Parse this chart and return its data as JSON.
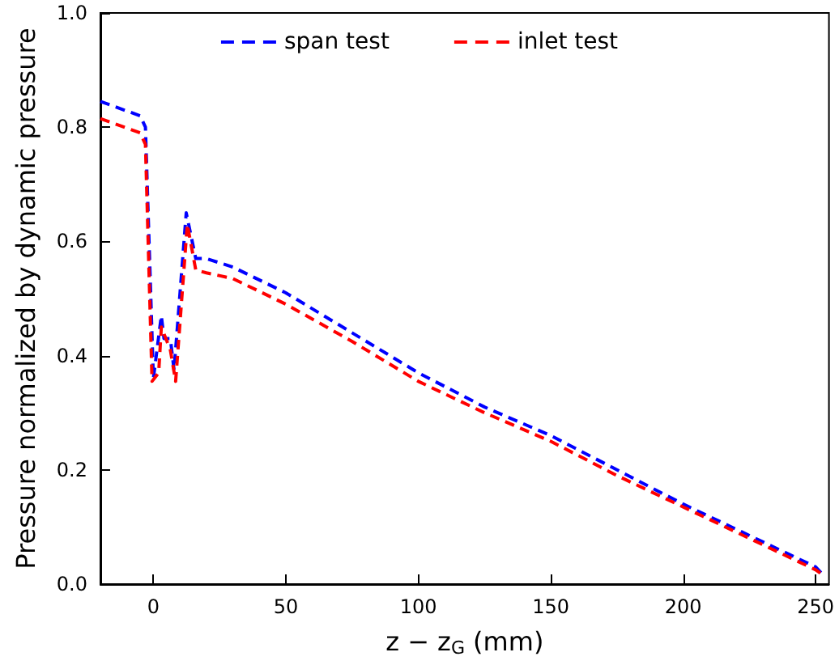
{
  "chart_data": {
    "type": "line",
    "xlabel": "z − z$_{G}$ (mm)",
    "ylabel": "Pressure normalized by dynamic pressure",
    "xlim": [
      -20,
      255
    ],
    "xticks": [
      0,
      50,
      100,
      150,
      200,
      250
    ],
    "ylim": [
      0,
      1
    ],
    "yticks": [
      {
        "value": 0,
        "label": "0.0"
      },
      {
        "value": 0.2,
        "label": "0.2"
      },
      {
        "value": 0.4,
        "label": "0.4"
      },
      {
        "value": 0.6,
        "label": "0.6"
      },
      {
        "value": 0.8,
        "label": "0.8"
      },
      {
        "value": 1,
        "label": "1.0"
      }
    ],
    "grid": false,
    "legend": "top",
    "marker": "none",
    "line_style": "dashed",
    "series": [
      {
        "name": "span test",
        "color": "#0000ff",
        "x": [
          -20,
          -5,
          -3,
          0,
          3,
          4,
          6.4,
          7.8,
          12.4,
          16,
          20,
          30,
          50,
          75,
          100,
          125,
          150,
          175,
          200,
          225,
          250,
          253
        ],
        "values": [
          0.845,
          0.82,
          0.8,
          0.36,
          0.47,
          0.43,
          0.43,
          0.375,
          0.65,
          0.57,
          0.57,
          0.555,
          0.51,
          0.44,
          0.37,
          0.31,
          0.26,
          0.2,
          0.14,
          0.085,
          0.03,
          0.015
        ]
      },
      {
        "name": "inlet test",
        "color": "#ff0000",
        "x": [
          -20,
          -5,
          -3,
          -0.5,
          2,
          3,
          6.4,
          8.4,
          12.8,
          16,
          20,
          30,
          50,
          75,
          100,
          125,
          150,
          175,
          200,
          225,
          250,
          253
        ],
        "values": [
          0.815,
          0.79,
          0.77,
          0.355,
          0.37,
          0.45,
          0.41,
          0.355,
          0.63,
          0.55,
          0.545,
          0.535,
          0.49,
          0.425,
          0.355,
          0.3,
          0.25,
          0.19,
          0.135,
          0.08,
          0.025,
          0.015
        ]
      }
    ]
  }
}
